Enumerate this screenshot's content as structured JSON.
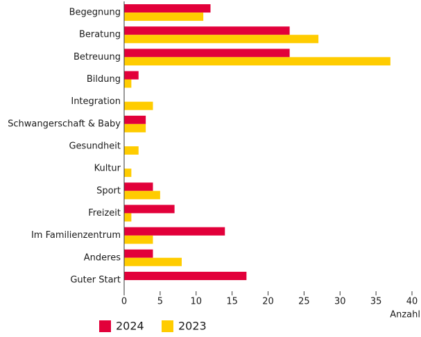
{
  "chart_data": {
    "type": "barh",
    "xlabel": "Anzahl",
    "categories": [
      "Begegnung",
      "Beratung",
      "Betreuung",
      "Bildung",
      "Integration",
      "Schwangerschaft & Baby",
      "Gesundheit",
      "Kultur",
      "Sport",
      "Freizeit",
      "Im Familienzentrum",
      "Anderes",
      "Guter Start"
    ],
    "series": [
      {
        "name": "2024",
        "color": "#e2003a",
        "values": [
          12,
          23,
          23,
          2,
          0,
          3,
          0,
          0,
          4,
          7,
          14,
          4,
          17
        ]
      },
      {
        "name": "2023",
        "color": "#ffcc00",
        "values": [
          11,
          27,
          37,
          1,
          4,
          3,
          2,
          1,
          5,
          1,
          4,
          8,
          0
        ]
      }
    ],
    "xlim": [
      0,
      40
    ],
    "xticks": [
      0,
      5,
      10,
      15,
      20,
      25,
      30,
      35,
      40
    ],
    "grid": false
  }
}
